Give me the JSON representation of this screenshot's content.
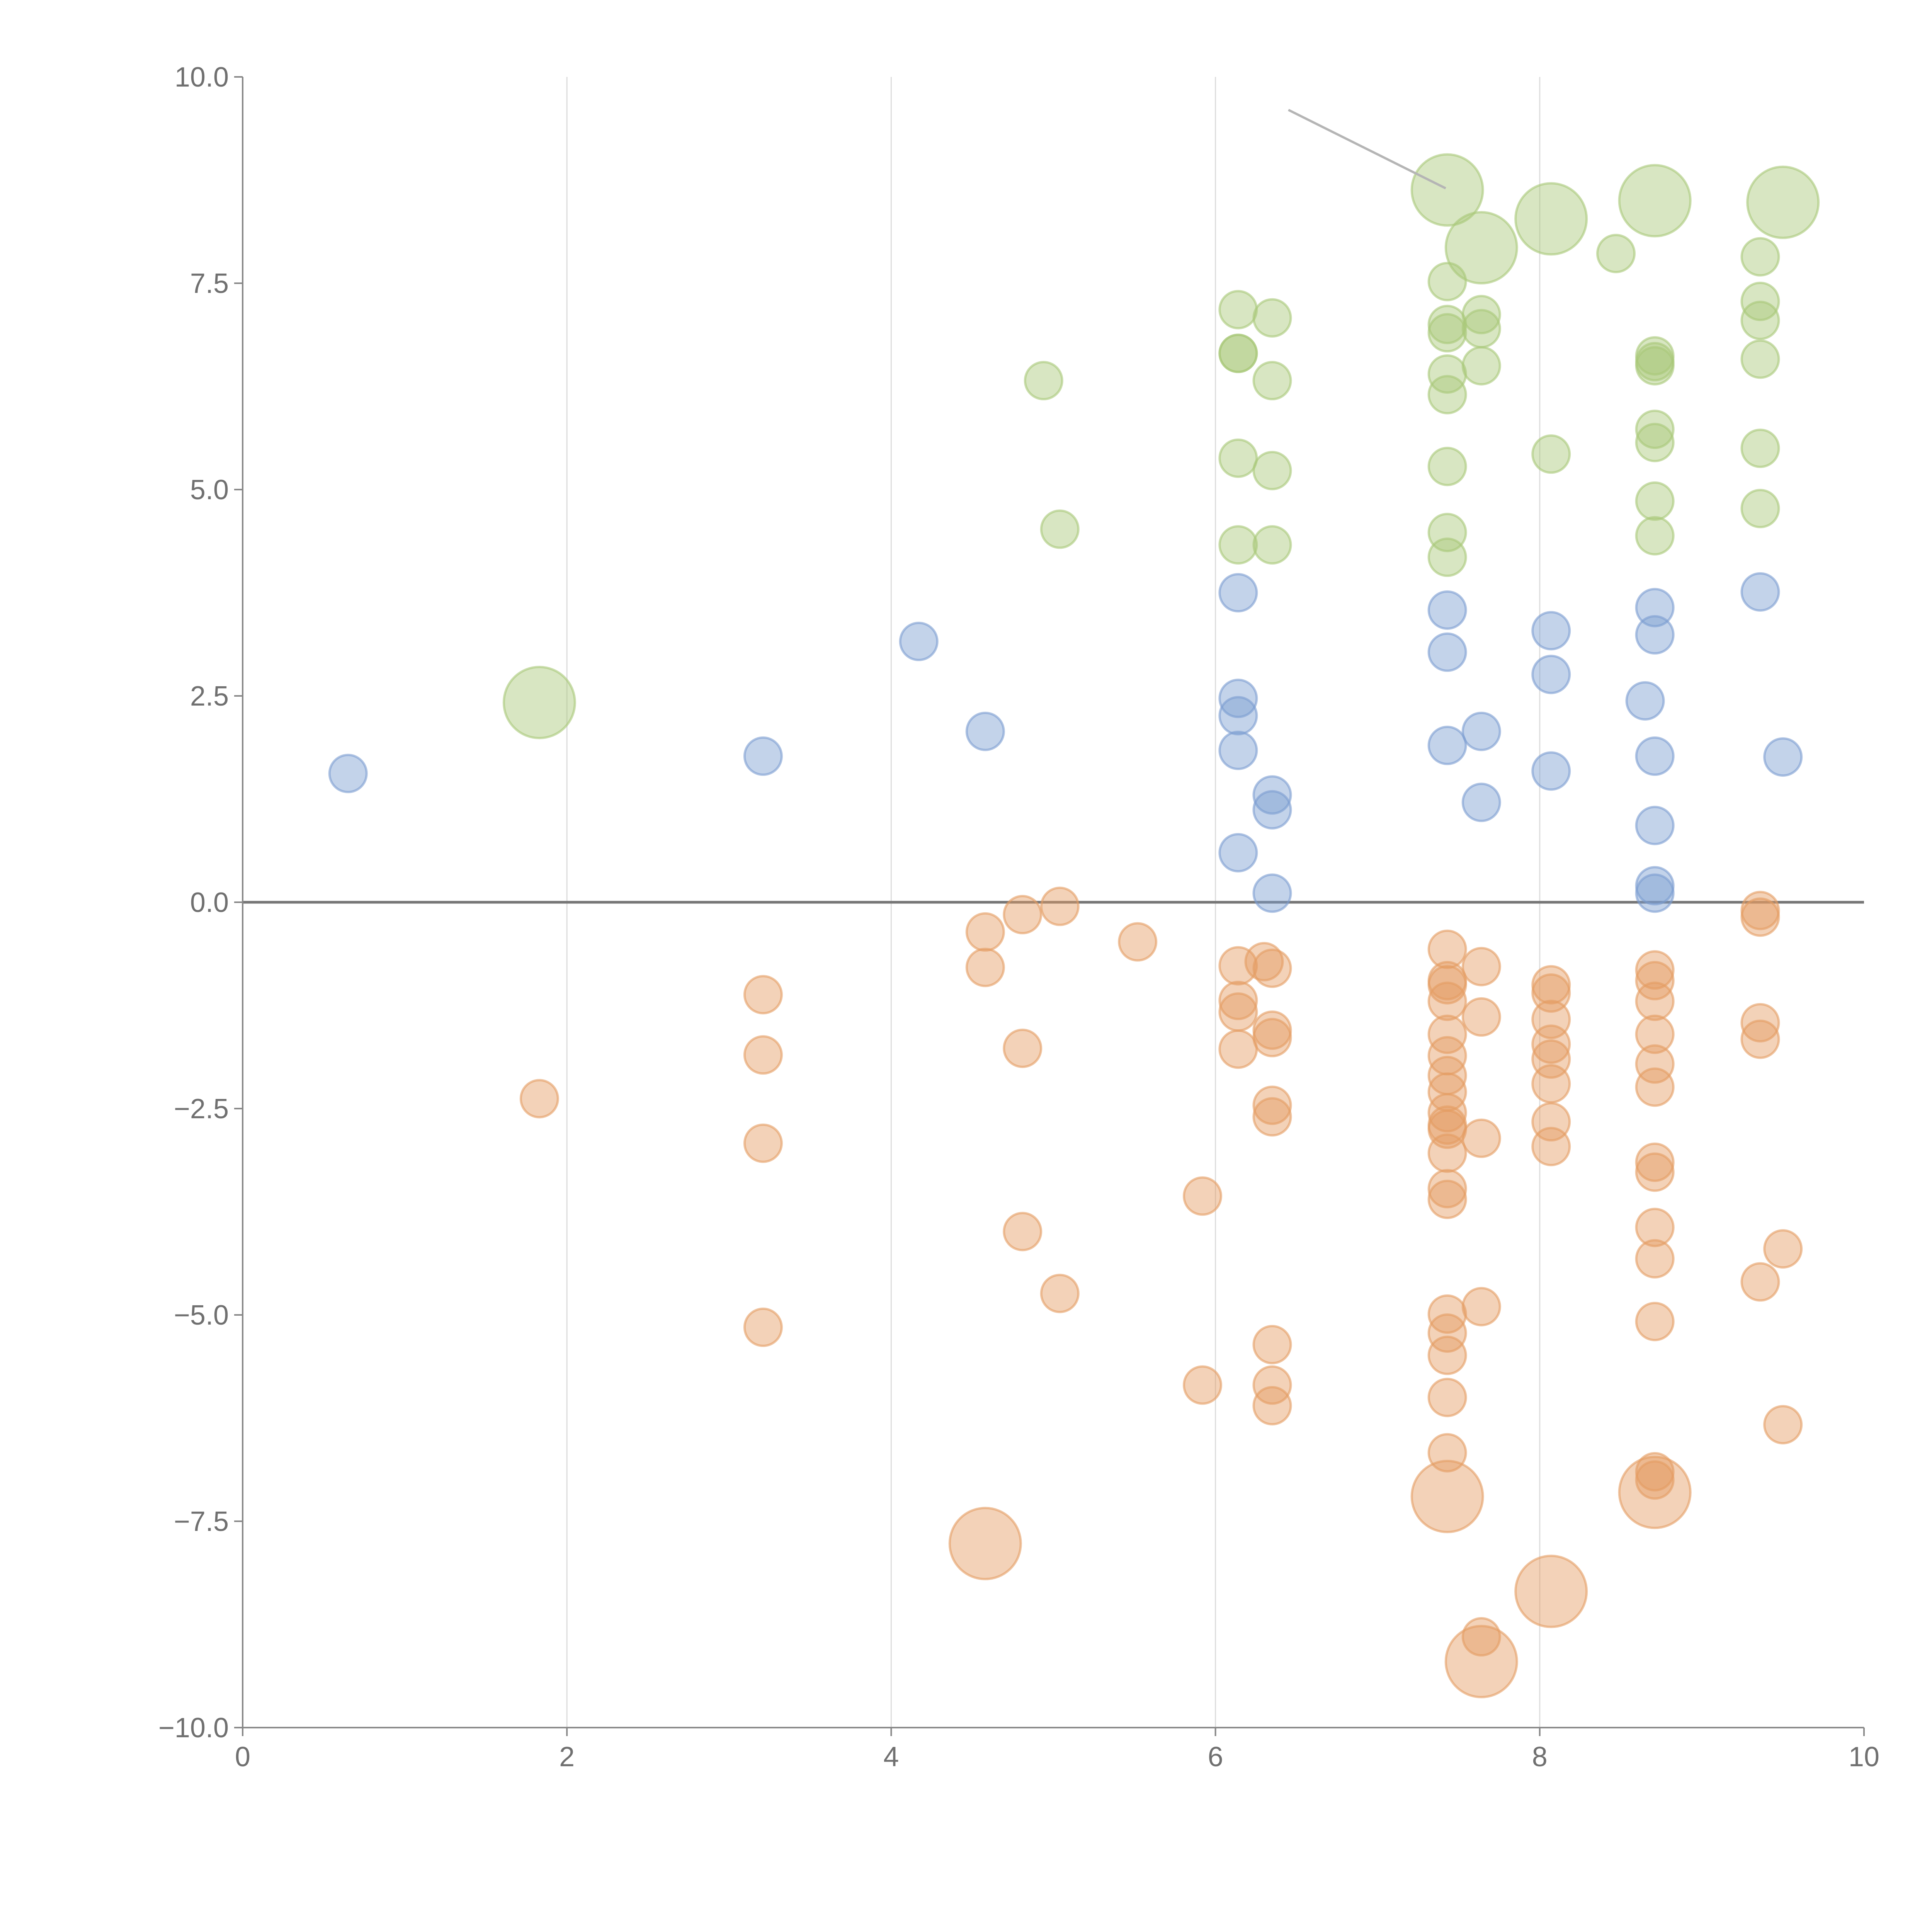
{
  "chart_data": {
    "type": "scatter",
    "title": "",
    "xlabel": "",
    "ylabel": "",
    "xlim": [
      0,
      10
    ],
    "ylim": [
      -10,
      10
    ],
    "xticks": [
      "0",
      "2",
      "4",
      "6",
      "8",
      "10"
    ],
    "yticks": [
      "10.0",
      "7.5",
      "5.0",
      "2.5",
      "0.0",
      "−2.5",
      "−5.0",
      "−7.5",
      "−10.0"
    ],
    "grid": "vertical",
    "legend": "none",
    "annotation_line": {
      "from": [
        6.45,
        9.6
      ],
      "to": [
        7.42,
        8.65
      ]
    },
    "series": [
      {
        "name": "green",
        "color": "#a8c878",
        "points": [
          [
            1.83,
            2.42,
            2
          ],
          [
            4.94,
            6.32,
            1
          ],
          [
            5.04,
            4.52,
            1
          ],
          [
            6.14,
            7.18,
            1
          ],
          [
            6.14,
            6.65,
            1
          ],
          [
            6.14,
            6.65,
            1
          ],
          [
            6.14,
            5.38,
            1
          ],
          [
            6.14,
            4.33,
            1
          ],
          [
            6.35,
            7.08,
            1
          ],
          [
            6.35,
            6.32,
            1
          ],
          [
            6.35,
            5.23,
            1
          ],
          [
            6.35,
            4.33,
            1
          ],
          [
            7.43,
            8.63,
            2
          ],
          [
            7.43,
            7.52,
            1
          ],
          [
            7.43,
            7.0,
            1
          ],
          [
            7.43,
            6.9,
            1
          ],
          [
            7.43,
            6.4,
            1
          ],
          [
            7.43,
            6.15,
            1
          ],
          [
            7.43,
            5.28,
            1
          ],
          [
            7.43,
            4.48,
            1
          ],
          [
            7.43,
            4.18,
            1
          ],
          [
            7.64,
            7.93,
            2
          ],
          [
            7.64,
            7.12,
            1
          ],
          [
            7.64,
            6.95,
            1
          ],
          [
            7.64,
            6.5,
            1
          ],
          [
            8.07,
            8.28,
            2
          ],
          [
            8.07,
            5.43,
            1
          ],
          [
            8.47,
            7.86,
            1
          ],
          [
            8.71,
            8.5,
            2
          ],
          [
            8.71,
            6.62,
            1
          ],
          [
            8.71,
            6.55,
            1
          ],
          [
            8.71,
            6.5,
            1
          ],
          [
            8.71,
            5.73,
            1
          ],
          [
            8.71,
            5.57,
            1
          ],
          [
            8.71,
            4.86,
            1
          ],
          [
            8.71,
            4.44,
            1
          ],
          [
            9.36,
            7.82,
            1
          ],
          [
            9.36,
            7.28,
            1
          ],
          [
            9.36,
            7.05,
            1
          ],
          [
            9.36,
            6.58,
            1
          ],
          [
            9.36,
            5.5,
            1
          ],
          [
            9.36,
            4.77,
            1
          ],
          [
            9.5,
            8.48,
            2
          ]
        ]
      },
      {
        "name": "blue",
        "color": "#7b9dd0",
        "points": [
          [
            0.65,
            1.56,
            1
          ],
          [
            3.21,
            1.77,
            1
          ],
          [
            4.17,
            3.16,
            1
          ],
          [
            4.58,
            2.07,
            1
          ],
          [
            6.14,
            3.75,
            1
          ],
          [
            6.14,
            2.47,
            1
          ],
          [
            6.14,
            2.26,
            1
          ],
          [
            6.14,
            1.84,
            1
          ],
          [
            6.14,
            0.6,
            1
          ],
          [
            6.35,
            1.3,
            1
          ],
          [
            6.35,
            1.12,
            1
          ],
          [
            6.35,
            0.11,
            1
          ],
          [
            7.43,
            3.54,
            1
          ],
          [
            7.43,
            3.03,
            1
          ],
          [
            7.43,
            1.9,
            1
          ],
          [
            7.64,
            2.07,
            1
          ],
          [
            7.64,
            1.21,
            1
          ],
          [
            8.07,
            3.29,
            1
          ],
          [
            8.07,
            2.76,
            1
          ],
          [
            8.07,
            1.59,
            1
          ],
          [
            8.65,
            2.44,
            1
          ],
          [
            8.71,
            3.57,
            1
          ],
          [
            8.71,
            3.24,
            1
          ],
          [
            8.71,
            1.77,
            1
          ],
          [
            8.71,
            0.93,
            1
          ],
          [
            8.71,
            0.2,
            1
          ],
          [
            8.71,
            0.11,
            1
          ],
          [
            9.36,
            3.76,
            1
          ],
          [
            9.5,
            1.76,
            1
          ]
        ]
      },
      {
        "name": "orange",
        "color": "#e59c62",
        "points": [
          [
            1.83,
            -2.38,
            1
          ],
          [
            3.21,
            -1.12,
            1
          ],
          [
            3.21,
            -1.85,
            1
          ],
          [
            3.21,
            -2.92,
            1
          ],
          [
            3.21,
            -5.15,
            1
          ],
          [
            4.58,
            -0.36,
            1
          ],
          [
            4.58,
            -0.79,
            1
          ],
          [
            4.58,
            -7.77,
            2
          ],
          [
            4.81,
            -0.15,
            1
          ],
          [
            4.81,
            -1.77,
            1
          ],
          [
            4.81,
            -3.99,
            1
          ],
          [
            5.04,
            -0.05,
            1
          ],
          [
            5.04,
            -4.74,
            1
          ],
          [
            5.52,
            -0.48,
            1
          ],
          [
            5.92,
            -3.56,
            1
          ],
          [
            5.92,
            -5.85,
            1
          ],
          [
            6.14,
            -0.77,
            1
          ],
          [
            6.14,
            -1.19,
            1
          ],
          [
            6.14,
            -1.33,
            1
          ],
          [
            6.14,
            -1.78,
            1
          ],
          [
            6.3,
            -0.72,
            1
          ],
          [
            6.35,
            -0.8,
            1
          ],
          [
            6.35,
            -1.55,
            1
          ],
          [
            6.35,
            -1.64,
            1
          ],
          [
            6.35,
            -2.46,
            1
          ],
          [
            6.35,
            -2.6,
            1
          ],
          [
            6.35,
            -5.36,
            1
          ],
          [
            6.35,
            -5.85,
            1
          ],
          [
            6.35,
            -6.1,
            1
          ],
          [
            7.43,
            -0.57,
            1
          ],
          [
            7.43,
            -0.95,
            1
          ],
          [
            7.43,
            -1.0,
            1
          ],
          [
            7.43,
            -1.2,
            1
          ],
          [
            7.43,
            -1.6,
            1
          ],
          [
            7.43,
            -1.86,
            1
          ],
          [
            7.43,
            -2.1,
            1
          ],
          [
            7.43,
            -2.3,
            1
          ],
          [
            7.43,
            -2.55,
            1
          ],
          [
            7.43,
            -2.7,
            1
          ],
          [
            7.43,
            -2.75,
            1
          ],
          [
            7.43,
            -3.04,
            1
          ],
          [
            7.43,
            -3.47,
            1
          ],
          [
            7.43,
            -3.6,
            1
          ],
          [
            7.43,
            -4.99,
            1
          ],
          [
            7.43,
            -5.22,
            1
          ],
          [
            7.43,
            -5.49,
            1
          ],
          [
            7.43,
            -6.0,
            1
          ],
          [
            7.43,
            -6.67,
            1
          ],
          [
            7.43,
            -7.2,
            2
          ],
          [
            7.64,
            -0.78,
            1
          ],
          [
            7.64,
            -1.39,
            1
          ],
          [
            7.64,
            -2.86,
            1
          ],
          [
            7.64,
            -4.9,
            1
          ],
          [
            7.64,
            -8.9,
            1
          ],
          [
            7.64,
            -9.2,
            2
          ],
          [
            8.07,
            -1.0,
            1
          ],
          [
            8.07,
            -1.1,
            1
          ],
          [
            8.07,
            -1.42,
            1
          ],
          [
            8.07,
            -1.72,
            1
          ],
          [
            8.07,
            -1.9,
            1
          ],
          [
            8.07,
            -2.2,
            1
          ],
          [
            8.07,
            -2.66,
            1
          ],
          [
            8.07,
            -2.96,
            1
          ],
          [
            8.07,
            -8.35,
            2
          ],
          [
            8.71,
            -0.82,
            1
          ],
          [
            8.71,
            -0.95,
            1
          ],
          [
            8.71,
            -1.2,
            1
          ],
          [
            8.71,
            -1.6,
            1
          ],
          [
            8.71,
            -1.96,
            1
          ],
          [
            8.71,
            -2.24,
            1
          ],
          [
            8.71,
            -3.15,
            1
          ],
          [
            8.71,
            -3.27,
            1
          ],
          [
            8.71,
            -3.94,
            1
          ],
          [
            8.71,
            -4.32,
            1
          ],
          [
            8.71,
            -5.08,
            1
          ],
          [
            8.71,
            -6.9,
            1
          ],
          [
            8.71,
            -7.0,
            1
          ],
          [
            8.71,
            -7.15,
            2
          ],
          [
            9.36,
            -0.1,
            1
          ],
          [
            9.36,
            -0.18,
            1
          ],
          [
            9.36,
            -1.46,
            1
          ],
          [
            9.36,
            -1.66,
            1
          ],
          [
            9.36,
            -4.6,
            1
          ],
          [
            9.5,
            -4.2,
            1
          ],
          [
            9.5,
            -6.33,
            1
          ]
        ]
      }
    ]
  }
}
